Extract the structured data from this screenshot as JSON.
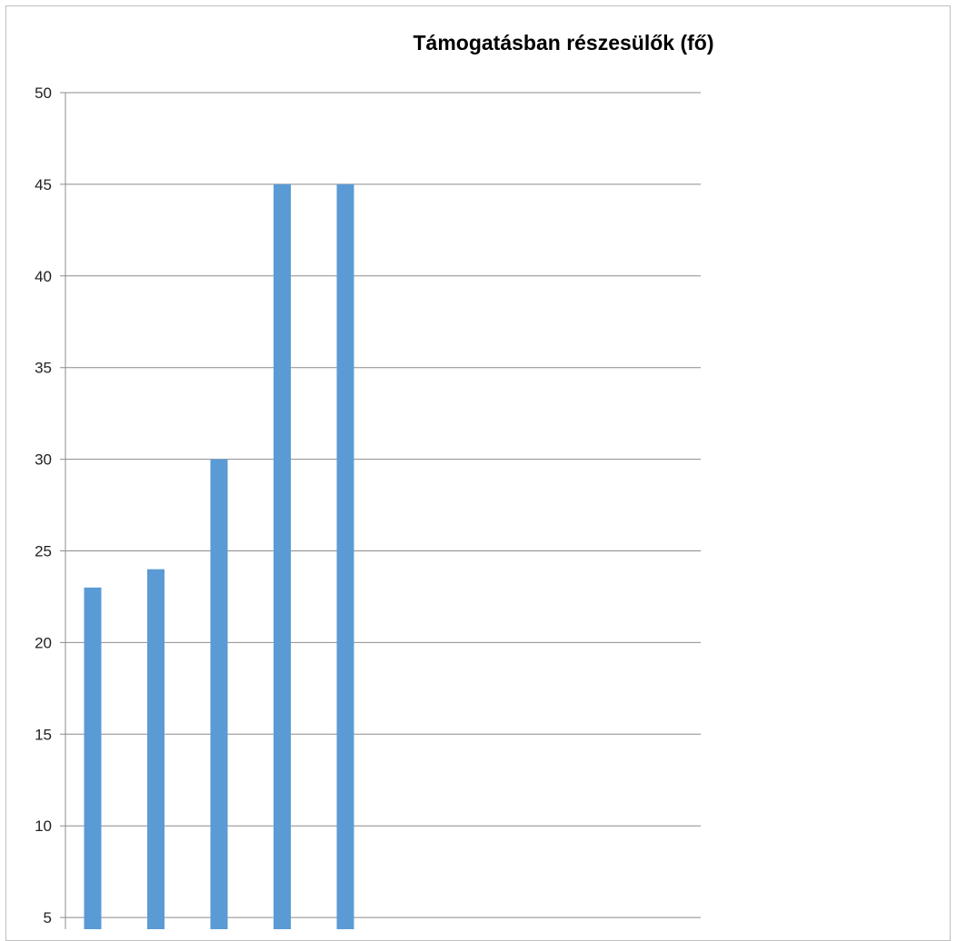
{
  "chart_data": {
    "type": "bar",
    "title": "Támogatásban részesülők (fő)",
    "xlabel": "",
    "ylabel": "",
    "categories": [
      "",
      "",
      "",
      "",
      ""
    ],
    "values": [
      23,
      24,
      30,
      45,
      45
    ],
    "ylim": [
      5,
      50
    ],
    "yticks": [
      "5",
      "10",
      "15",
      "20",
      "25",
      "30",
      "35",
      "40",
      "45",
      "50"
    ],
    "grid": true,
    "legend": "none",
    "colors": {
      "bar": "#5b9bd5",
      "grid": "#8c8c8c",
      "frame": "#bfbfbf"
    }
  }
}
